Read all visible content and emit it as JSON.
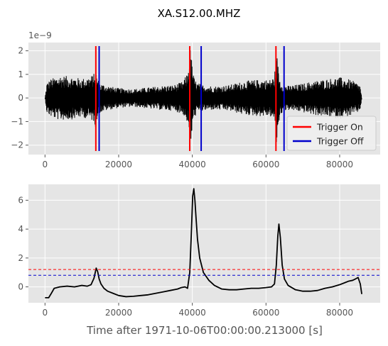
{
  "figure": {
    "title": "XA.S12.00.MHZ",
    "background": "#ffffff"
  },
  "chart_data": [
    {
      "type": "line",
      "title": "",
      "xlabel": "",
      "ylabel": "",
      "offset_text": "1e−9",
      "xlim": [
        -4500,
        91000
      ],
      "ylim": [
        -2.4,
        2.35
      ],
      "y_multiplier": 1e-09,
      "xticks": [
        0,
        20000,
        40000,
        60000,
        80000
      ],
      "xtick_labels": [
        "0",
        "20000",
        "40000",
        "60000",
        "80000"
      ],
      "yticks": [
        -2,
        -1,
        0,
        1,
        2
      ],
      "ytick_labels": [
        "−2",
        "−1",
        "0",
        "1",
        "2"
      ],
      "grid": true,
      "plot_bg": "#e5e5e5",
      "series": [
        {
          "name": "",
          "color": "#000000",
          "kind": "signal-envelope",
          "x": [
            0,
            500,
            1500,
            4000,
            7000,
            10000,
            12000,
            13200,
            13700,
            14200,
            15000,
            17000,
            20000,
            24000,
            28000,
            32000,
            35000,
            37500,
            38800,
            39400,
            39900,
            40400,
            41200,
            43000,
            46000,
            50000,
            54000,
            58000,
            61000,
            62300,
            62800,
            63300,
            63800,
            64500,
            66000,
            69000,
            73000,
            77000,
            80000,
            82000,
            84000,
            85600,
            86000
          ],
          "amplitude": [
            0.0,
            0.65,
            0.8,
            0.95,
            0.92,
            0.82,
            0.9,
            1.0,
            1.25,
            0.85,
            0.62,
            0.52,
            0.42,
            0.38,
            0.45,
            0.52,
            0.55,
            0.7,
            1.1,
            2.15,
            1.55,
            0.9,
            0.65,
            0.55,
            0.5,
            0.55,
            0.72,
            0.78,
            0.78,
            0.92,
            2.1,
            1.35,
            0.78,
            0.6,
            0.52,
            0.58,
            0.72,
            0.82,
            0.88,
            0.82,
            0.7,
            0.55,
            0.0
          ]
        }
      ],
      "legend": {
        "location": "lower right",
        "entries": [
          {
            "label": "Trigger On",
            "color": "#ff0000"
          },
          {
            "label": "Trigger Off",
            "color": "#0000cc"
          }
        ]
      },
      "vlines": [
        {
          "x": 13800,
          "series": "Trigger On"
        },
        {
          "x": 14700,
          "series": "Trigger Off"
        },
        {
          "x": 39300,
          "series": "Trigger On"
        },
        {
          "x": 42400,
          "series": "Trigger Off"
        },
        {
          "x": 62700,
          "series": "Trigger On"
        },
        {
          "x": 64900,
          "series": "Trigger Off"
        }
      ],
      "vline_range": [
        -2.25,
        2.2
      ]
    },
    {
      "type": "line",
      "title": "",
      "xlabel": "Time after 1971-10-06T00:00:00.213000 [s]",
      "ylabel": "",
      "xlim": [
        -4500,
        91000
      ],
      "ylim": [
        -1.1,
        7.1
      ],
      "xticks": [
        0,
        20000,
        40000,
        60000,
        80000
      ],
      "xtick_labels": [
        "0",
        "20000",
        "40000",
        "60000",
        "80000"
      ],
      "yticks": [
        0,
        2,
        4,
        6
      ],
      "ytick_labels": [
        "0",
        "2",
        "4",
        "6"
      ],
      "grid": true,
      "plot_bg": "#e5e5e5",
      "series": [
        {
          "name": "",
          "color": "#000000",
          "x": [
            0,
            1000,
            1600,
            2500,
            4000,
            6000,
            8000,
            10000,
            11500,
            12500,
            13300,
            13900,
            14300,
            14700,
            15200,
            16000,
            17000,
            18500,
            20000,
            22000,
            24000,
            26000,
            28000,
            30000,
            32000,
            34000,
            36000,
            37000,
            38000,
            38700,
            39300,
            39700,
            40100,
            40400,
            40700,
            41000,
            41400,
            42000,
            43000,
            44500,
            46000,
            48000,
            50000,
            52000,
            54000,
            56000,
            58000,
            60000,
            61500,
            62300,
            62800,
            63200,
            63500,
            63900,
            64400,
            65000,
            66000,
            68000,
            70000,
            72000,
            74000,
            76000,
            78000,
            80000,
            81500,
            82500,
            83500,
            84300,
            85000,
            85600,
            86000
          ],
          "y": [
            -0.75,
            -0.75,
            -0.5,
            -0.1,
            0.0,
            0.05,
            0.0,
            0.1,
            0.05,
            0.15,
            0.6,
            1.3,
            1.05,
            0.55,
            0.2,
            -0.1,
            -0.3,
            -0.45,
            -0.6,
            -0.68,
            -0.65,
            -0.6,
            -0.55,
            -0.45,
            -0.35,
            -0.25,
            -0.15,
            -0.05,
            0.0,
            -0.1,
            1.0,
            3.5,
            6.3,
            6.8,
            6.0,
            4.8,
            3.3,
            2.0,
            1.0,
            0.45,
            0.1,
            -0.15,
            -0.2,
            -0.2,
            -0.15,
            -0.1,
            -0.1,
            -0.05,
            0.0,
            0.2,
            1.5,
            3.5,
            4.35,
            3.4,
            1.5,
            0.55,
            0.1,
            -0.2,
            -0.3,
            -0.3,
            -0.25,
            -0.1,
            0.0,
            0.15,
            0.3,
            0.4,
            0.45,
            0.55,
            0.65,
            0.2,
            -0.5
          ]
        }
      ],
      "hlines": [
        {
          "y": 1.2,
          "color": "#ff0000",
          "style": "dashed"
        },
        {
          "y": 0.8,
          "color": "#0000cc",
          "style": "dashed"
        }
      ]
    }
  ]
}
